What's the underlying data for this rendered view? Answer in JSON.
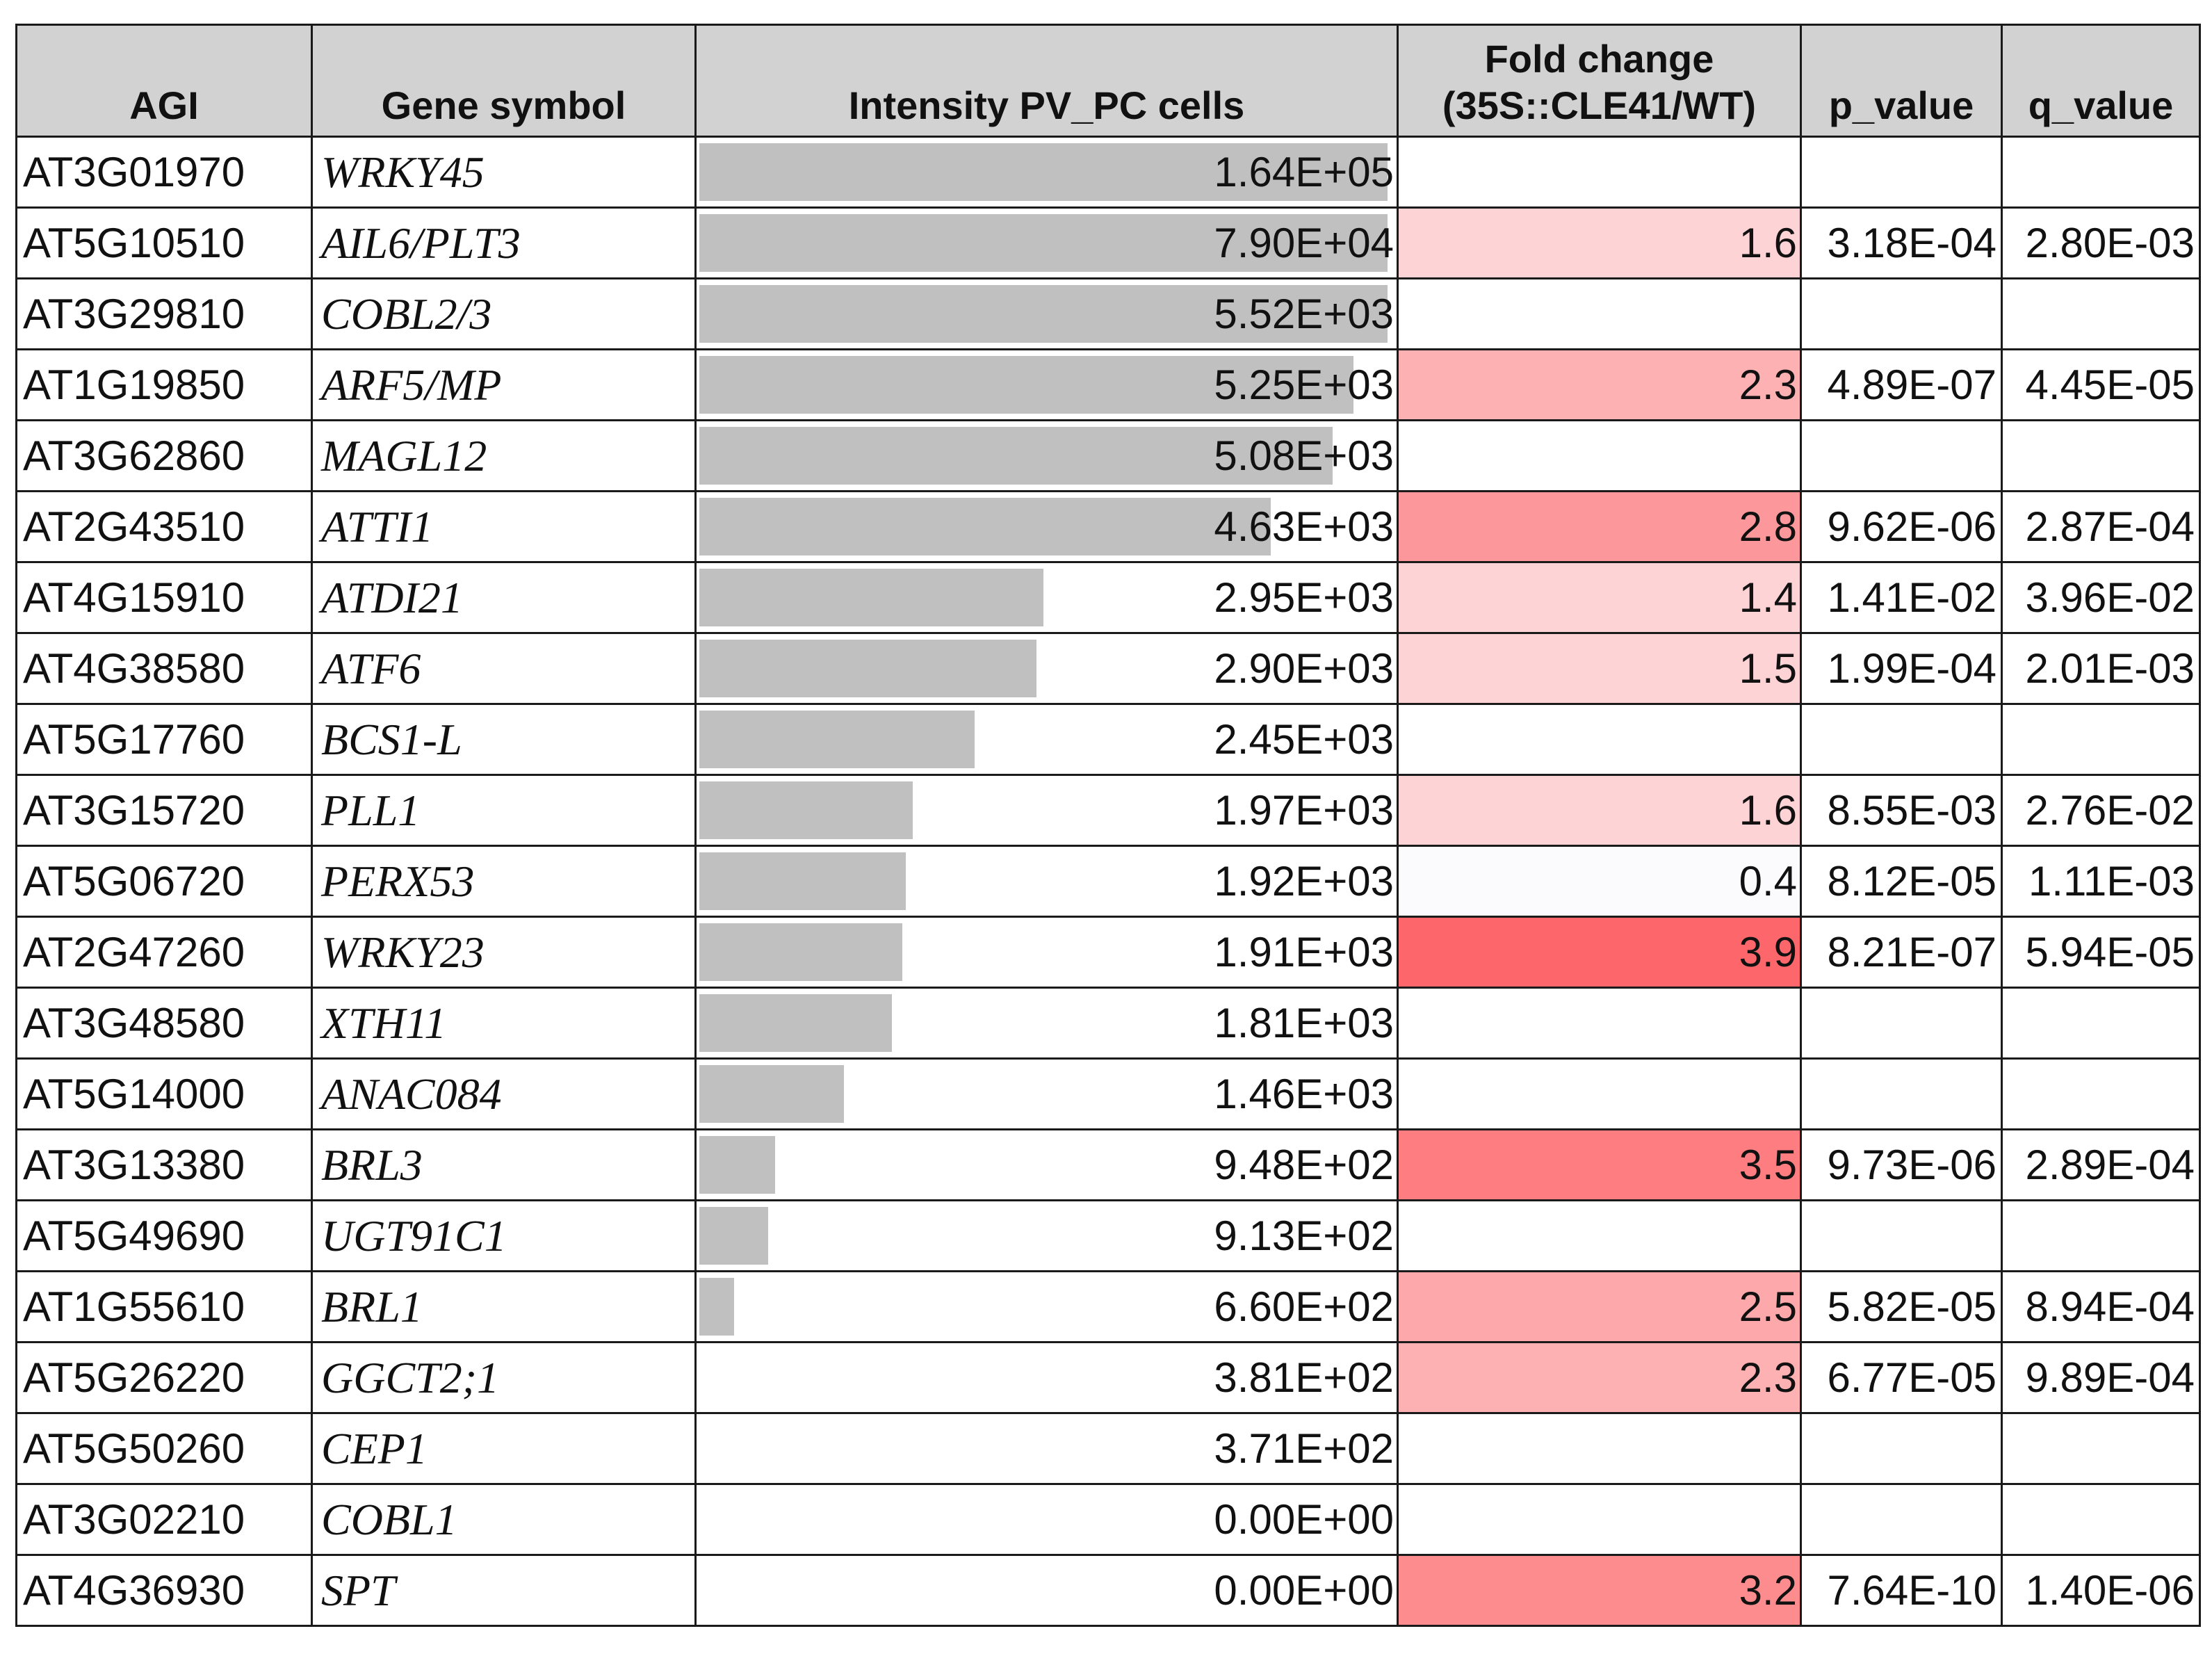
{
  "table": {
    "headers": {
      "agi": "AGI",
      "gene": "Gene symbol",
      "intensity": "Intensity PV_PC cells",
      "fold_line1": "Fold change",
      "fold_line2": "(35S::CLE41/WT)",
      "p": "p_value",
      "q": "q_value"
    },
    "bar_color": "#c0c0c0",
    "header_bg": "#d2d2d2",
    "intensity_scale_max": 1.64,
    "rows": [
      {
        "agi": "AT3G01970",
        "gene": "WRKY45",
        "intensity": "1.64E+05",
        "bar_fraction": 1.0,
        "fc": "",
        "fc_color": "#ffffff",
        "p": "",
        "q": ""
      },
      {
        "agi": "AT5G10510",
        "gene": "AIL6/PLT3",
        "intensity": "7.90E+04",
        "bar_fraction": 1.0,
        "fc": "1.6",
        "fc_color": "#fed3d6",
        "p": "3.18E-04",
        "q": "2.80E-03"
      },
      {
        "agi": "AT3G29810",
        "gene": "COBL2/3",
        "intensity": "5.52E+03",
        "bar_fraction": 1.0,
        "fc": "",
        "fc_color": "#ffffff",
        "p": "",
        "q": ""
      },
      {
        "agi": "AT1G19850",
        "gene": "ARF5/MP",
        "intensity": "5.25E+03",
        "bar_fraction": 0.95,
        "fc": "2.3",
        "fc_color": "#fdb1b3",
        "p": "4.89E-07",
        "q": "4.45E-05"
      },
      {
        "agi": "AT3G62860",
        "gene": "MAGL12",
        "intensity": "5.08E+03",
        "bar_fraction": 0.92,
        "fc": "",
        "fc_color": "#ffffff",
        "p": "",
        "q": ""
      },
      {
        "agi": "AT2G43510",
        "gene": "ATTI1",
        "intensity": "4.63E+03",
        "bar_fraction": 0.83,
        "fc": "2.8",
        "fc_color": "#fc989b",
        "p": "9.62E-06",
        "q": "2.87E-04"
      },
      {
        "agi": "AT4G15910",
        "gene": "ATDI21",
        "intensity": "2.95E+03",
        "bar_fraction": 0.5,
        "fc": "1.4",
        "fc_color": "#fed3d6",
        "p": "1.41E-02",
        "q": "3.96E-02"
      },
      {
        "agi": "AT4G38580",
        "gene": "ATF6",
        "intensity": "2.90E+03",
        "bar_fraction": 0.49,
        "fc": "1.5",
        "fc_color": "#fed3d6",
        "p": "1.99E-04",
        "q": "2.01E-03"
      },
      {
        "agi": "AT5G17760",
        "gene": "BCS1-L",
        "intensity": "2.45E+03",
        "bar_fraction": 0.4,
        "fc": "",
        "fc_color": "#ffffff",
        "p": "",
        "q": ""
      },
      {
        "agi": "AT3G15720",
        "gene": "PLL1",
        "intensity": "1.97E+03",
        "bar_fraction": 0.31,
        "fc": "1.6",
        "fc_color": "#fed3d6",
        "p": "8.55E-03",
        "q": "2.76E-02"
      },
      {
        "agi": "AT5G06720",
        "gene": "PERX53",
        "intensity": "1.92E+03",
        "bar_fraction": 0.3,
        "fc": "0.4",
        "fc_color": "#fbfbfd",
        "p": "8.12E-05",
        "q": "1.11E-03"
      },
      {
        "agi": "AT2G47260",
        "gene": "WRKY23",
        "intensity": "1.91E+03",
        "bar_fraction": 0.295,
        "fc": "3.9",
        "fc_color": "#fd676b",
        "p": "8.21E-07",
        "q": "5.94E-05"
      },
      {
        "agi": "AT3G48580",
        "gene": "XTH11",
        "intensity": "1.81E+03",
        "bar_fraction": 0.28,
        "fc": "",
        "fc_color": "#ffffff",
        "p": "",
        "q": ""
      },
      {
        "agi": "AT5G14000",
        "gene": "ANAC084",
        "intensity": "1.46E+03",
        "bar_fraction": 0.21,
        "fc": "",
        "fc_color": "#ffffff",
        "p": "",
        "q": ""
      },
      {
        "agi": "AT3G13380",
        "gene": "BRL3",
        "intensity": "9.48E+02",
        "bar_fraction": 0.11,
        "fc": "3.5",
        "fc_color": "#fd7d80",
        "p": "9.73E-06",
        "q": "2.89E-04"
      },
      {
        "agi": "AT5G49690",
        "gene": "UGT91C1",
        "intensity": "9.13E+02",
        "bar_fraction": 0.1,
        "fc": "",
        "fc_color": "#ffffff",
        "p": "",
        "q": ""
      },
      {
        "agi": "AT1G55610",
        "gene": "BRL1",
        "intensity": "6.60E+02",
        "bar_fraction": 0.05,
        "fc": "2.5",
        "fc_color": "#fda8ab",
        "p": "5.82E-05",
        "q": "8.94E-04"
      },
      {
        "agi": "AT5G26220",
        "gene": "GGCT2;1",
        "intensity": "3.81E+02",
        "bar_fraction": 0,
        "fc": "2.3",
        "fc_color": "#fdb1b3",
        "p": "6.77E-05",
        "q": "9.89E-04"
      },
      {
        "agi": "AT5G50260",
        "gene": "CEP1",
        "intensity": "3.71E+02",
        "bar_fraction": 0,
        "fc": "",
        "fc_color": "#ffffff",
        "p": "",
        "q": ""
      },
      {
        "agi": "AT3G02210",
        "gene": "COBL1",
        "intensity": "0.00E+00",
        "bar_fraction": 0,
        "fc": "",
        "fc_color": "#ffffff",
        "p": "",
        "q": ""
      },
      {
        "agi": "AT4G36930",
        "gene": "SPT",
        "intensity": "0.00E+00",
        "bar_fraction": 0,
        "fc": "3.2",
        "fc_color": "#fd8c8f",
        "p": "7.64E-10",
        "q": "1.40E-06"
      }
    ]
  }
}
